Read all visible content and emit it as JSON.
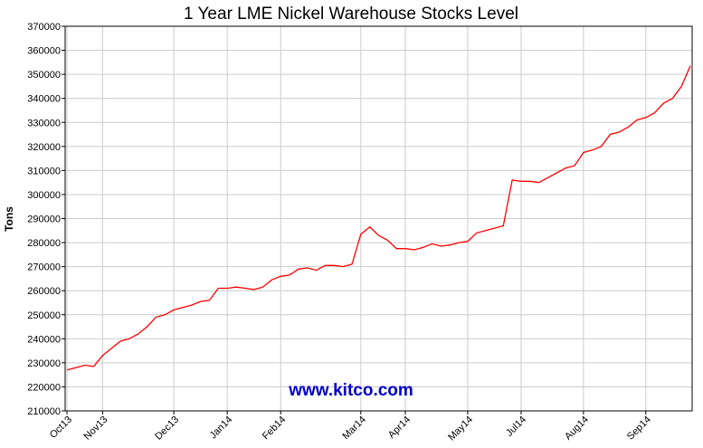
{
  "chart_data": {
    "type": "line",
    "title": "1 Year LME Nickel Warehouse Stocks Level",
    "xlabel": "",
    "ylabel": "Tons",
    "ylim": [
      210000,
      370000
    ],
    "grid": true,
    "legend": "none",
    "y_ticks": [
      "210000",
      "220000",
      "230000",
      "240000",
      "250000",
      "260000",
      "270000",
      "280000",
      "290000",
      "300000",
      "310000",
      "320000",
      "330000",
      "340000",
      "350000",
      "360000",
      "370000"
    ],
    "x_ticks": [
      "Oct13",
      "Nov13",
      "Dec13",
      "Jan14",
      "Feb14",
      "Mar14",
      "Apr14",
      "May14",
      "Jul14",
      "Aug14",
      "Sep14"
    ],
    "series": [
      {
        "color": "#ff0000",
        "points": [
          [
            "Oct13",
            227000
          ],
          [
            "",
            228000
          ],
          [
            "",
            229000
          ],
          [
            "",
            228500
          ],
          [
            "Nov13",
            233000
          ],
          [
            "",
            236000
          ],
          [
            "",
            239000
          ],
          [
            "",
            240000
          ],
          [
            "",
            242000
          ],
          [
            "",
            245000
          ],
          [
            "",
            249000
          ],
          [
            "",
            250000
          ],
          [
            "Dec13",
            252000
          ],
          [
            "",
            253000
          ],
          [
            "",
            254000
          ],
          [
            "",
            255500
          ],
          [
            "",
            256000
          ],
          [
            "",
            261000
          ],
          [
            "Jan14",
            261000
          ],
          [
            "",
            261500
          ],
          [
            "",
            261000
          ],
          [
            "",
            260500
          ],
          [
            "",
            261500
          ],
          [
            "",
            264500
          ],
          [
            "Feb14",
            266000
          ],
          [
            "",
            266500
          ],
          [
            "",
            269000
          ],
          [
            "",
            269500
          ],
          [
            "",
            268500
          ],
          [
            "",
            270500
          ],
          [
            "",
            270500
          ],
          [
            "",
            270000
          ],
          [
            "",
            271000
          ],
          [
            "Mar14",
            283500
          ],
          [
            "",
            286500
          ],
          [
            "",
            283000
          ],
          [
            "",
            281000
          ],
          [
            "",
            277500
          ],
          [
            "Apr14",
            277500
          ],
          [
            "",
            277000
          ],
          [
            "",
            278000
          ],
          [
            "",
            279500
          ],
          [
            "",
            278500
          ],
          [
            "",
            279000
          ],
          [
            "",
            280000
          ],
          [
            "May14",
            280500
          ],
          [
            "",
            284000
          ],
          [
            "",
            285000
          ],
          [
            "",
            286000
          ],
          [
            "",
            287000
          ],
          [
            "",
            306000
          ],
          [
            "Jul14",
            305500
          ],
          [
            "",
            305500
          ],
          [
            "",
            305000
          ],
          [
            "",
            307000
          ],
          [
            "",
            309000
          ],
          [
            "",
            311000
          ],
          [
            "",
            312000
          ],
          [
            "Aug14",
            317500
          ],
          [
            "",
            318500
          ],
          [
            "",
            320000
          ],
          [
            "",
            325000
          ],
          [
            "",
            326000
          ],
          [
            "",
            328000
          ],
          [
            "",
            331000
          ],
          [
            "Sep14",
            332000
          ],
          [
            "",
            334000
          ],
          [
            "",
            338000
          ],
          [
            "",
            340000
          ],
          [
            "",
            345000
          ],
          [
            "",
            353500
          ]
        ]
      }
    ],
    "watermark": "www.kitco.com"
  }
}
